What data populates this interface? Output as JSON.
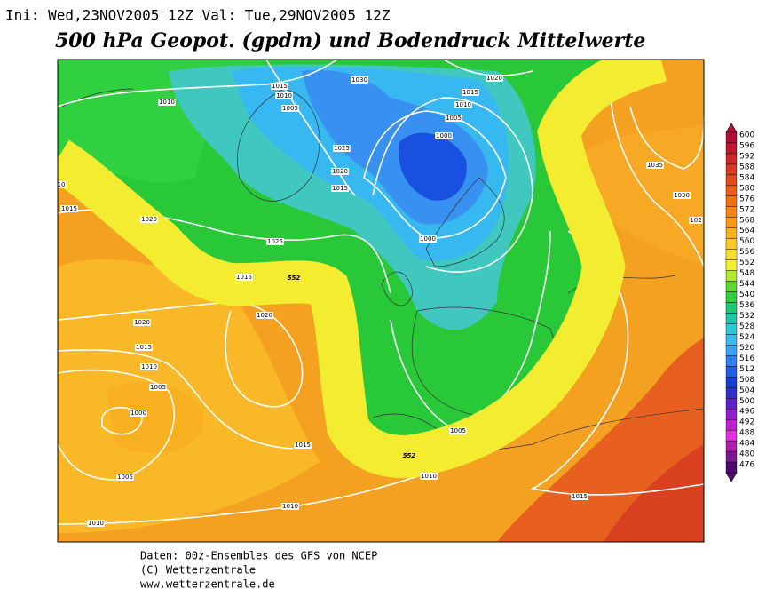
{
  "header": {
    "init_line": "Ini: Wed,23NOV2005  12Z Val: Tue,29NOV2005  12Z",
    "title": "500 hPa Geopot. (gpdm) und Bodendruck Mittelwerte"
  },
  "colorbar": {
    "labels": [
      "600",
      "596",
      "592",
      "588",
      "584",
      "580",
      "576",
      "572",
      "568",
      "564",
      "560",
      "556",
      "552",
      "548",
      "544",
      "540",
      "536",
      "532",
      "528",
      "524",
      "520",
      "516",
      "512",
      "508",
      "504",
      "500",
      "496",
      "492",
      "488",
      "484",
      "480",
      "476"
    ],
    "colors": [
      "#b0103a",
      "#c01a30",
      "#d02a28",
      "#dc3a20",
      "#e44c1c",
      "#ea5e1a",
      "#f07018",
      "#f4841a",
      "#f8981c",
      "#fab020",
      "#fcc828",
      "#fce030",
      "#f0f030",
      "#b0e830",
      "#60d830",
      "#30d040",
      "#20c870",
      "#20c8a8",
      "#30c8d8",
      "#40b8f0",
      "#40a0f0",
      "#3080f0",
      "#2060e8",
      "#1840d8",
      "#3030c8",
      "#6020c8",
      "#9020c8",
      "#c020d0",
      "#e030e0",
      "#b020b0",
      "#801890",
      "#500870"
    ]
  },
  "isobar_labels": [
    "1015",
    "1010",
    "1005",
    "1030",
    "1020",
    "1015",
    "1010",
    "1005",
    "1000",
    "1010",
    "1025",
    "1020",
    "1015",
    "1035",
    "1030",
    "1015",
    "1020",
    "1025",
    "1000",
    "1015",
    "552",
    "1020",
    "1020",
    "1015",
    "1010",
    "1005",
    "1000",
    "1015",
    "1005",
    "552",
    "1010",
    "1005",
    "1010",
    "1015",
    "1010",
    "10",
    "102"
  ],
  "footer": {
    "lines": [
      "Daten: 00z-Ensembles des GFS von NCEP",
      "(C) Wetterzentrale",
      "www.wetterzentrale.de"
    ]
  }
}
